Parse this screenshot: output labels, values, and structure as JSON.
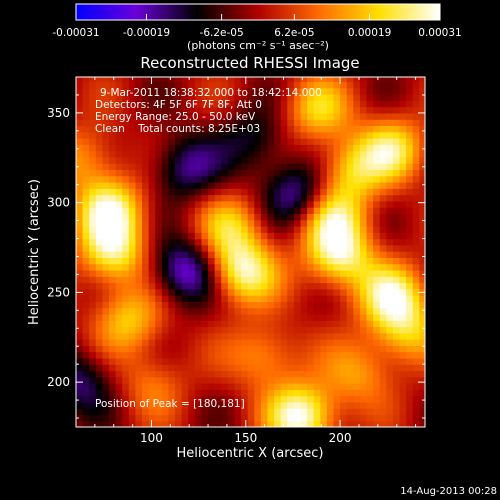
{
  "chart_data": {
    "type": "heatmap",
    "title": "Reconstructed RHESSI Image",
    "xlabel": "Heliocentric X (arcsec)",
    "ylabel": "Heliocentric Y (arcsec)",
    "xlim": [
      60,
      245
    ],
    "ylim": [
      175,
      370
    ],
    "xticks": [
      "100",
      "150",
      "200"
    ],
    "yticks": [
      "200",
      "250",
      "300",
      "350"
    ],
    "xtick_values": [
      100,
      150,
      200
    ],
    "ytick_values": [
      200,
      250,
      300,
      350
    ],
    "colorbar": {
      "min": -0.00031,
      "max": 0.00031,
      "tick_labels": [
        "-0.00031",
        "-0.00019",
        "-6.2e-05",
        "6.2e-05",
        "0.00019",
        "0.00031"
      ],
      "tick_values": [
        -0.00031,
        -0.00019,
        -6.2e-05,
        6.2e-05,
        0.00019,
        0.00031
      ],
      "units": "(photons cm⁻² s⁻¹ asec⁻²)",
      "colors": [
        "#0000ff",
        "#6a00d8",
        "#000000",
        "#b00000",
        "#ff6a00",
        "#ffe000",
        "#ffffff"
      ]
    },
    "annotations": [
      "9-Mar-2011 18:38:32.000 to 18:42:14.000",
      "Detectors: 4F 5F 6F 7F 8F, Att 0",
      "Energy Range: 25.0 - 50.0 keV",
      "Clean    Total counts: 8.25E+03"
    ],
    "peak_label": "Position of Peak = [180,181]",
    "peak": [
      180,
      181
    ],
    "sources": [
      {
        "x": 180,
        "y": 181,
        "intensity": 1.0
      },
      {
        "x": 78,
        "y": 296,
        "intensity": 0.85
      },
      {
        "x": 80,
        "y": 272,
        "intensity": 0.75
      },
      {
        "x": 88,
        "y": 235,
        "intensity": 0.6
      },
      {
        "x": 148,
        "y": 262,
        "intensity": 0.9
      },
      {
        "x": 142,
        "y": 287,
        "intensity": 0.55
      },
      {
        "x": 200,
        "y": 270,
        "intensity": 0.8
      },
      {
        "x": 196,
        "y": 292,
        "intensity": 0.7
      },
      {
        "x": 205,
        "y": 318,
        "intensity": 0.6
      },
      {
        "x": 228,
        "y": 248,
        "intensity": 0.8
      },
      {
        "x": 235,
        "y": 228,
        "intensity": 0.55
      },
      {
        "x": 228,
        "y": 330,
        "intensity": 0.7
      },
      {
        "x": 188,
        "y": 352,
        "intensity": 0.6
      },
      {
        "x": 65,
        "y": 325,
        "intensity": 0.45
      },
      {
        "x": 160,
        "y": 215,
        "intensity": 0.5
      },
      {
        "x": 210,
        "y": 205,
        "intensity": 0.45
      },
      {
        "x": 100,
        "y": 200,
        "intensity": 0.35
      },
      {
        "x": 118,
        "y": 262,
        "intensity": -0.75
      },
      {
        "x": 178,
        "y": 305,
        "intensity": -0.65
      },
      {
        "x": 118,
        "y": 320,
        "intensity": -0.55
      },
      {
        "x": 62,
        "y": 200,
        "intensity": -0.5
      },
      {
        "x": 155,
        "y": 335,
        "intensity": -0.4
      }
    ]
  },
  "footer_date": "14-Aug-2013 00:28"
}
